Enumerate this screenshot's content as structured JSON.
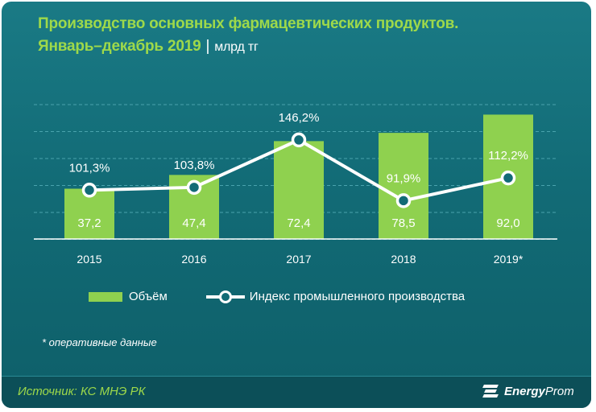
{
  "header": {
    "title_line1": "Производство основных фармацевтических продуктов.",
    "title_line2": "Январь–декабрь 2019",
    "separator": "|",
    "unit": "млрд тг"
  },
  "chart_data": {
    "type": "bar",
    "categories": [
      "2015",
      "2016",
      "2017",
      "2018",
      "2019*"
    ],
    "series": [
      {
        "name": "Объём",
        "type": "bar",
        "values": [
          37.2,
          47.4,
          72.4,
          78.5,
          92.0
        ],
        "labels": [
          "37,2",
          "47,4",
          "72,4",
          "78,5",
          "92,0"
        ]
      },
      {
        "name": "Индекс промышленного производства",
        "type": "line",
        "values": [
          101.3,
          103.8,
          146.2,
          91.9,
          112.2
        ],
        "labels": [
          "101,3%",
          "103,8%",
          "146,2%",
          "91,9%",
          "112,2%"
        ]
      }
    ],
    "grid": true,
    "legend": "bottom"
  },
  "colors": {
    "bar": "#8fd14f",
    "line": "#ffffff",
    "background": "#126b76",
    "title": "#9ed94a"
  },
  "footnote": "* оперативные данные",
  "footer": {
    "source": "Источник: КС МНЭ РК",
    "logo_bold": "Energy",
    "logo_light": "Prom",
    "logo_icon": "energyprom-logo-icon"
  }
}
